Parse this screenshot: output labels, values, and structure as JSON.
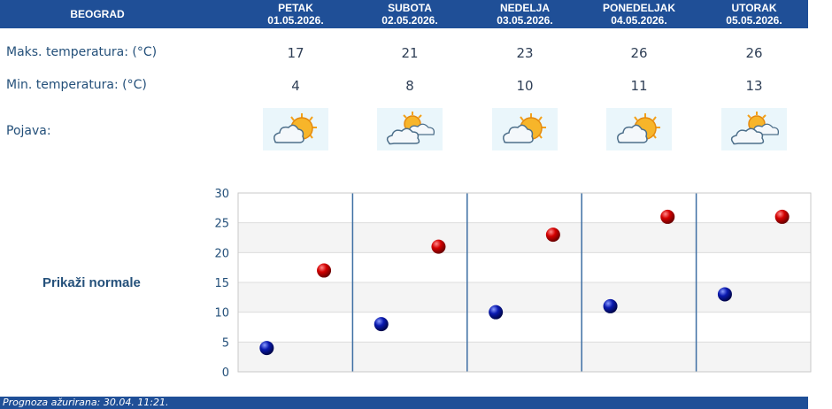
{
  "header": {
    "city": "BEOGRAD",
    "days": [
      {
        "name": "PETAK",
        "date": "01.05.2026."
      },
      {
        "name": "SUBOTA",
        "date": "02.05.2026."
      },
      {
        "name": "NEDELJA",
        "date": "03.05.2026."
      },
      {
        "name": "PONEDELJAK",
        "date": "04.05.2026."
      },
      {
        "name": "UTORAK",
        "date": "05.05.2026."
      }
    ]
  },
  "rows": {
    "max_label": "Maks. temperatura: (°C)",
    "min_label": "Min. temperatura: (°C)",
    "phen_label": "Pojava:",
    "max": [
      "17",
      "21",
      "23",
      "26",
      "26"
    ],
    "min": [
      "4",
      "8",
      "10",
      "11",
      "13"
    ],
    "icons": [
      "partly-cloudy-sun-icon",
      "sun-behind-clouds-icon",
      "partly-cloudy-sun-icon",
      "partly-cloudy-sun-icon",
      "sun-behind-clouds-icon"
    ]
  },
  "normale_link": "Prikaži normale",
  "footer": {
    "text": "Prognoza ažurirana:  30.04. 11:21."
  },
  "colors": {
    "header_bg": "#1f4f97",
    "max_point": "#cc0000",
    "min_point": "#0a1aa8"
  },
  "chart_data": {
    "type": "scatter",
    "categories": [
      "01.05.2026.",
      "02.05.2026.",
      "03.05.2026.",
      "04.05.2026.",
      "05.05.2026."
    ],
    "series": [
      {
        "values": [
          4,
          8,
          10,
          11,
          13
        ]
      },
      {
        "values": [
          17,
          21,
          23,
          26,
          26
        ]
      }
    ],
    "yticks": [
      "0",
      "5",
      "10",
      "15",
      "20",
      "25",
      "30"
    ],
    "ylim": [
      0,
      30
    ],
    "grid": true,
    "legend": "none"
  }
}
